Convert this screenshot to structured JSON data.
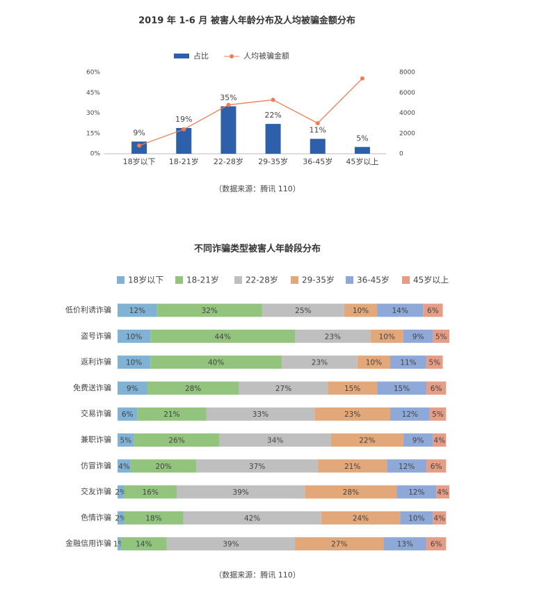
{
  "chart_data": [
    {
      "type": "bar",
      "title": "2019 年 1-6 月 被害人年龄分布及人均被骗金额分布",
      "categories": [
        "18岁以下",
        "18-21岁",
        "22-28岁",
        "29-35岁",
        "36-45岁",
        "45岁以上"
      ],
      "series": [
        {
          "name": "占比",
          "type": "bar",
          "color": "#2d5faa",
          "values": [
            9,
            19,
            35,
            22,
            11,
            5
          ],
          "value_labels": [
            "9%",
            "19%",
            "35%",
            "22%",
            "11%",
            "5%"
          ]
        },
        {
          "name": "人均被骗金额",
          "type": "line",
          "axis": "y2",
          "color": "#ed7d55",
          "values": [
            800,
            2400,
            4800,
            5300,
            3000,
            7400
          ]
        }
      ],
      "ylim": [
        0,
        60
      ],
      "yticks": [
        {
          "value": 0,
          "label": "0%"
        },
        {
          "value": 15,
          "label": "15%"
        },
        {
          "value": 30,
          "label": "30%"
        },
        {
          "value": 45,
          "label": "45%"
        },
        {
          "value": 60,
          "label": "60%"
        }
      ],
      "y2lim": [
        0,
        8000
      ],
      "y2ticks": [
        0,
        2000,
        4000,
        6000,
        8000
      ],
      "note": "（数据来源：腾讯 110）"
    },
    {
      "type": "stackedbar",
      "title": "不同诈骗类型被害人年龄段分布",
      "categories": [
        "低价利诱诈骗",
        "盗号诈骗",
        "返利诈骗",
        "免费送诈骗",
        "交易诈骗",
        "兼职诈骗",
        "仿冒诈骗",
        "交友诈骗",
        "色情诈骗",
        "金融信用诈骗"
      ],
      "series": [
        {
          "name": "18岁以下",
          "color": "#7fb2d5",
          "values": [
            12,
            10,
            10,
            9,
            6,
            5,
            4,
            2,
            2,
            1
          ],
          "value_labels": [
            "12%",
            "10%",
            "10%",
            "9%",
            "6%",
            "5%",
            "4%",
            "2%",
            "2%",
            "1%"
          ]
        },
        {
          "name": "18-21岁",
          "color": "#93c47d",
          "values": [
            32,
            44,
            40,
            28,
            21,
            26,
            20,
            16,
            18,
            14
          ],
          "value_labels": [
            "32%",
            "44%",
            "40%",
            "28%",
            "21%",
            "26%",
            "20%",
            "16%",
            "18%",
            "14%"
          ]
        },
        {
          "name": "22-28岁",
          "color": "#bfbfbf",
          "values": [
            25,
            23,
            23,
            27,
            33,
            34,
            37,
            39,
            42,
            39
          ],
          "value_labels": [
            "25%",
            "23%",
            "23%",
            "27%",
            "33%",
            "34%",
            "37%",
            "39%",
            "42%",
            "39%"
          ]
        },
        {
          "name": "29-35岁",
          "color": "#e3a87a",
          "values": [
            10,
            10,
            10,
            15,
            23,
            22,
            21,
            28,
            24,
            27
          ],
          "value_labels": [
            "10%",
            "10%",
            "10%",
            "15%",
            "23%",
            "22%",
            "21%",
            "28%",
            "24%",
            "27%"
          ]
        },
        {
          "name": "36-45岁",
          "color": "#8ea9d8",
          "values": [
            14,
            9,
            11,
            15,
            12,
            9,
            12,
            12,
            10,
            13
          ],
          "value_labels": [
            "14%",
            "9%",
            "11%",
            "15%",
            "12%",
            "9%",
            "12%",
            "12%",
            "10%",
            "13%"
          ]
        },
        {
          "name": "45岁以上",
          "color": "#e59d86",
          "values": [
            6,
            5,
            5,
            6,
            5,
            4,
            6,
            4,
            4,
            6
          ],
          "value_labels": [
            "6%",
            "5%",
            "5%",
            "6%",
            "5%",
            "4%",
            "6%",
            "4%",
            "4%",
            "6%"
          ]
        }
      ],
      "note": "（数据来源：腾讯 110）"
    }
  ]
}
